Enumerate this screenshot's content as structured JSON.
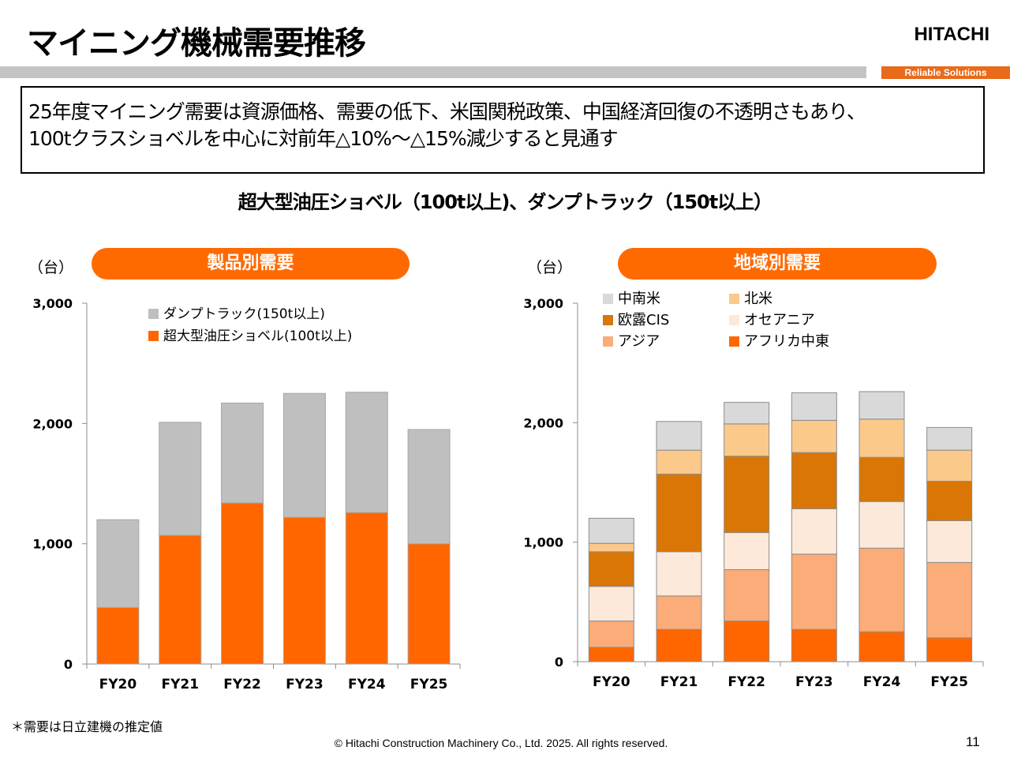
{
  "page": {
    "title": "マイニング機械需要推移",
    "logo": "HITACHI",
    "tagline": "Reliable Solutions",
    "summary_line1": "25年度マイニング需要は資源価格、需要の低下、米国関税政策、中国経済回復の不透明さもあり、",
    "summary_line2": "100tクラスショベルを中心に対前年△10%～△15%減少すると見通す",
    "subtitle": "超大型油圧ショベル（100t以上)、ダンプトラック（150t以上）",
    "footnote": "＊需要は日立建機の推定値",
    "copyright": "© Hitachi Construction Machinery Co., Ltd. 2025. All rights reserved.",
    "page_number": "11"
  },
  "chart_data": [
    {
      "type": "bar",
      "stacked": true,
      "title": "製品別需要",
      "unit_label": "（台）",
      "categories": [
        "FY20",
        "FY21",
        "FY22",
        "FY23",
        "FY24",
        "FY25"
      ],
      "ylim": [
        0,
        3000
      ],
      "y_ticks": [
        "0",
        "1,000",
        "2,000",
        "3,000"
      ],
      "y_tick_values": [
        0,
        1000,
        2000,
        3000
      ],
      "grid": false,
      "legend_position": "top-left",
      "series": [
        {
          "name": "超大型油圧ショベル(100t以上)",
          "color": "#ff6600",
          "values": [
            470,
            1070,
            1340,
            1220,
            1260,
            1000
          ]
        },
        {
          "name": "ダンプトラック(150t以上)",
          "color": "#bfbfbf",
          "values": [
            730,
            940,
            830,
            1030,
            1000,
            950
          ]
        }
      ],
      "legend_order": [
        1,
        0
      ]
    },
    {
      "type": "bar",
      "stacked": true,
      "title": "地域別需要",
      "unit_label": "（台）",
      "categories": [
        "FY20",
        "FY21",
        "FY22",
        "FY23",
        "FY24",
        "FY25"
      ],
      "ylim": [
        0,
        3000
      ],
      "y_ticks": [
        "0",
        "1,000",
        "2,000",
        "3,000"
      ],
      "y_tick_values": [
        0,
        1000,
        2000,
        3000
      ],
      "grid": false,
      "legend_position": "top-left",
      "series": [
        {
          "name": "アフリカ中東",
          "color": "#ff6600",
          "values": [
            120,
            270,
            340,
            270,
            250,
            200
          ]
        },
        {
          "name": "アジア",
          "color": "#fbac78",
          "values": [
            220,
            280,
            430,
            630,
            700,
            630
          ]
        },
        {
          "name": "オセアニア",
          "color": "#fde9d9",
          "values": [
            290,
            370,
            310,
            380,
            390,
            350
          ]
        },
        {
          "name": "欧露CIS",
          "color": "#d97606",
          "values": [
            290,
            650,
            640,
            470,
            370,
            330
          ]
        },
        {
          "name": "北米",
          "color": "#fbc98a",
          "values": [
            70,
            200,
            270,
            270,
            320,
            260
          ]
        },
        {
          "name": "中南米",
          "color": "#d9d9d9",
          "values": [
            210,
            240,
            180,
            230,
            230,
            190
          ]
        }
      ],
      "legend_order": [
        5,
        4,
        3,
        2,
        1,
        0
      ]
    }
  ]
}
